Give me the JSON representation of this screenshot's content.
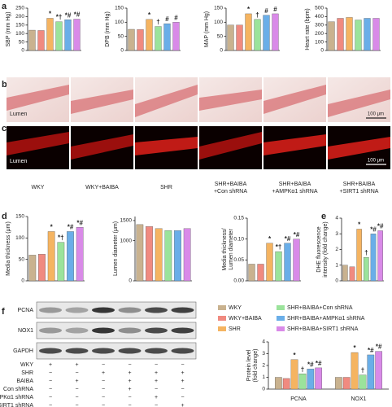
{
  "panel_labels": [
    "a",
    "b",
    "c",
    "d",
    "e",
    "f"
  ],
  "images": {
    "lumen_label": "Lumen",
    "scale_label": "100 μm",
    "groups": [
      [
        "WKY"
      ],
      [
        "WKY+BAIBA"
      ],
      [
        "SHR"
      ],
      [
        "SHR+BAIBA",
        "+Con shRNA"
      ],
      [
        "SHR+BAIBA",
        "+AMPKα1 shRNA"
      ],
      [
        "SHR+BAIBA",
        "+SIRT1 shRNA"
      ]
    ]
  },
  "blot": {
    "bands": [
      "PCNA",
      "NOX1",
      "GAPDH"
    ],
    "treatments": [
      {
        "label": "WKY",
        "signs": [
          "+",
          "+",
          "−",
          "−",
          "−",
          "−"
        ]
      },
      {
        "label": "SHR",
        "signs": [
          "−",
          "−",
          "+",
          "+",
          "+",
          "+"
        ]
      },
      {
        "label": "BAIBA",
        "signs": [
          "−",
          "+",
          "−",
          "+",
          "+",
          "+"
        ]
      },
      {
        "label": "Con shRNA",
        "signs": [
          "−",
          "−",
          "−",
          "+",
          "−",
          "−"
        ]
      },
      {
        "label": "AMPKα1 shRNA",
        "signs": [
          "−",
          "−",
          "−",
          "−",
          "+",
          "−"
        ]
      },
      {
        "label": "SIRT1 shRNA",
        "signs": [
          "−",
          "−",
          "−",
          "−",
          "−",
          "+"
        ]
      }
    ]
  },
  "chart_data": [
    {
      "type": "bar",
      "ylabel": [
        "SBP (mm Hg)"
      ],
      "values": [
        120,
        118,
        190,
        170,
        182,
        185
      ],
      "colors": [
        "#c9b28f",
        "#f08a80",
        "#f5b461",
        "#9be39b",
        "#6aaee8",
        "#d98ae8"
      ],
      "markers": [
        null,
        null,
        "*",
        "*†",
        "*#",
        "*#"
      ],
      "ylim": [
        0,
        250
      ],
      "yticks": [
        0,
        50,
        100,
        150,
        200,
        250
      ]
    },
    {
      "type": "bar",
      "ylabel": [
        "DPB (mm Hg)"
      ],
      "values": [
        75,
        74,
        110,
        85,
        95,
        100
      ],
      "colors": [
        "#c9b28f",
        "#f08a80",
        "#f5b461",
        "#9be39b",
        "#6aaee8",
        "#d98ae8"
      ],
      "markers": [
        null,
        null,
        "*",
        "†",
        "#",
        "#"
      ],
      "ylim": [
        0,
        150
      ],
      "yticks": [
        0,
        50,
        100,
        150
      ]
    },
    {
      "type": "bar",
      "ylabel": [
        "MAP (mm Hg)"
      ],
      "values": [
        90,
        90,
        130,
        110,
        125,
        130
      ],
      "colors": [
        "#c9b28f",
        "#f08a80",
        "#f5b461",
        "#9be39b",
        "#6aaee8",
        "#d98ae8"
      ],
      "markers": [
        null,
        null,
        "*",
        "†",
        "#",
        "#"
      ],
      "ylim": [
        0,
        150
      ],
      "yticks": [
        0,
        50,
        100,
        150
      ]
    },
    {
      "type": "bar",
      "ylabel": [
        "Heart rate (bpm)"
      ],
      "values": [
        340,
        380,
        390,
        360,
        380,
        380
      ],
      "colors": [
        "#c9b28f",
        "#f08a80",
        "#f5b461",
        "#9be39b",
        "#6aaee8",
        "#d98ae8"
      ],
      "ylim": [
        0,
        500
      ],
      "yticks": [
        0,
        100,
        200,
        300,
        400,
        500
      ]
    },
    {
      "type": "bar",
      "ylabel": [
        "Media thickness (μm)"
      ],
      "values": [
        60,
        62,
        115,
        90,
        115,
        125
      ],
      "colors": [
        "#c9b28f",
        "#f08a80",
        "#f5b461",
        "#9be39b",
        "#6aaee8",
        "#d98ae8"
      ],
      "markers": [
        null,
        null,
        "*",
        "*†",
        "*#",
        "*#"
      ],
      "ylim": [
        0,
        150
      ],
      "yticks": [
        0,
        50,
        100,
        150
      ]
    },
    {
      "type": "bar",
      "ylabel": [
        "Lumen diameter (μm)"
      ],
      "values": [
        1400,
        1350,
        1300,
        1250,
        1250,
        1300
      ],
      "colors": [
        "#c9b28f",
        "#f08a80",
        "#f5b461",
        "#9be39b",
        "#6aaee8",
        "#d98ae8"
      ],
      "ylim": [
        0,
        1600
      ],
      "yticks": [
        0,
        1000,
        1500
      ]
    },
    {
      "type": "bar",
      "ylabel": [
        "Media thickness/",
        "Lumen diameter"
      ],
      "values": [
        0.04,
        0.04,
        0.09,
        0.07,
        0.09,
        0.1
      ],
      "colors": [
        "#c9b28f",
        "#f08a80",
        "#f5b461",
        "#9be39b",
        "#6aaee8",
        "#d98ae8"
      ],
      "markers": [
        null,
        null,
        "*",
        "*†",
        "*#",
        "*#"
      ],
      "ylim": [
        0,
        0.15
      ],
      "yticks": [
        {
          "value": 0,
          "label": "0.00"
        },
        0.05,
        {
          "value": 0.1,
          "label": "0.10"
        },
        0.15
      ]
    },
    {
      "type": "bar",
      "ylabel": [
        "DHE fluorescence",
        "intensity (fold change)"
      ],
      "values": [
        1.0,
        0.9,
        3.3,
        1.5,
        3.0,
        3.2
      ],
      "colors": [
        "#c9b28f",
        "#f08a80",
        "#f5b461",
        "#9be39b",
        "#6aaee8",
        "#d98ae8"
      ],
      "markers": [
        null,
        null,
        "*",
        "†",
        "*#",
        "*#"
      ],
      "ylim": [
        0,
        4
      ],
      "yticks": [
        0,
        1,
        2,
        3,
        4
      ]
    },
    {
      "type": "grouped_bar",
      "ylabel": [
        "Protein level",
        "(fold change)"
      ],
      "categories": [
        "PCNA",
        "NOX1"
      ],
      "ylim": [
        0,
        4
      ],
      "yticks": [
        0,
        1,
        2,
        3,
        4
      ],
      "series": [
        {
          "name": "WKY",
          "color": "#c9b28f",
          "values": [
            1.0,
            1.0
          ],
          "markers": [
            null,
            null
          ]
        },
        {
          "name": "WKY+BAIBA",
          "color": "#f08a80",
          "values": [
            0.9,
            1.0
          ],
          "markers": [
            null,
            null
          ]
        },
        {
          "name": "SHR",
          "color": "#f5b461",
          "values": [
            2.5,
            3.1
          ],
          "markers": [
            "*",
            "*"
          ]
        },
        {
          "name": "SHR+BAIBA+Con shRNA",
          "color": "#9be39b",
          "values": [
            1.3,
            1.2
          ],
          "markers": [
            "†",
            "†"
          ]
        },
        {
          "name": "SHR+BAIBA+AMPKα1 shRNA",
          "color": "#6aaee8",
          "values": [
            1.7,
            2.9
          ],
          "markers": [
            "*#",
            "*#"
          ]
        },
        {
          "name": "SHR+BAIBA+SIRT1 shRNA",
          "color": "#d98ae8",
          "values": [
            1.8,
            3.2
          ],
          "markers": [
            "*#",
            "*#"
          ]
        }
      ]
    }
  ]
}
